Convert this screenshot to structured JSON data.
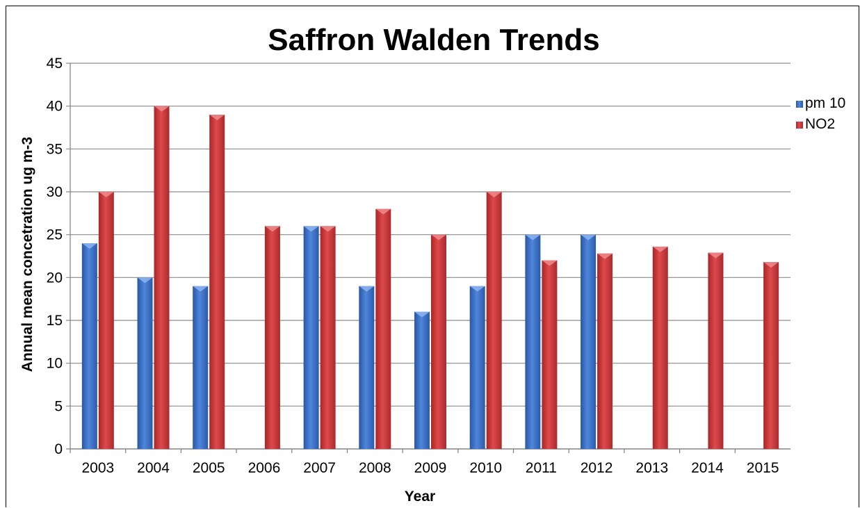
{
  "chart_data": {
    "type": "bar",
    "title": "Saffron Walden Trends",
    "xlabel": "Year",
    "ylabel": "Annual mean concetration ug m-3",
    "ylim": [
      0,
      45
    ],
    "yticks": [
      0,
      5,
      10,
      15,
      20,
      25,
      30,
      35,
      40,
      45
    ],
    "grid": true,
    "legend_position": "right",
    "categories": [
      "2003",
      "2004",
      "2005",
      "2006",
      "2007",
      "2008",
      "2009",
      "2010",
      "2011",
      "2012",
      "2013",
      "2014",
      "2015"
    ],
    "series": [
      {
        "name": "pm 10",
        "color": "#3f73c9",
        "values": [
          24,
          20,
          19,
          null,
          26,
          19,
          16,
          19,
          25,
          25,
          null,
          null,
          null
        ]
      },
      {
        "name": "NO2",
        "color": "#c8373a",
        "values": [
          30,
          40,
          39,
          26,
          26,
          28,
          25,
          30,
          22,
          22.8,
          23.6,
          22.9,
          21.8
        ]
      }
    ]
  }
}
